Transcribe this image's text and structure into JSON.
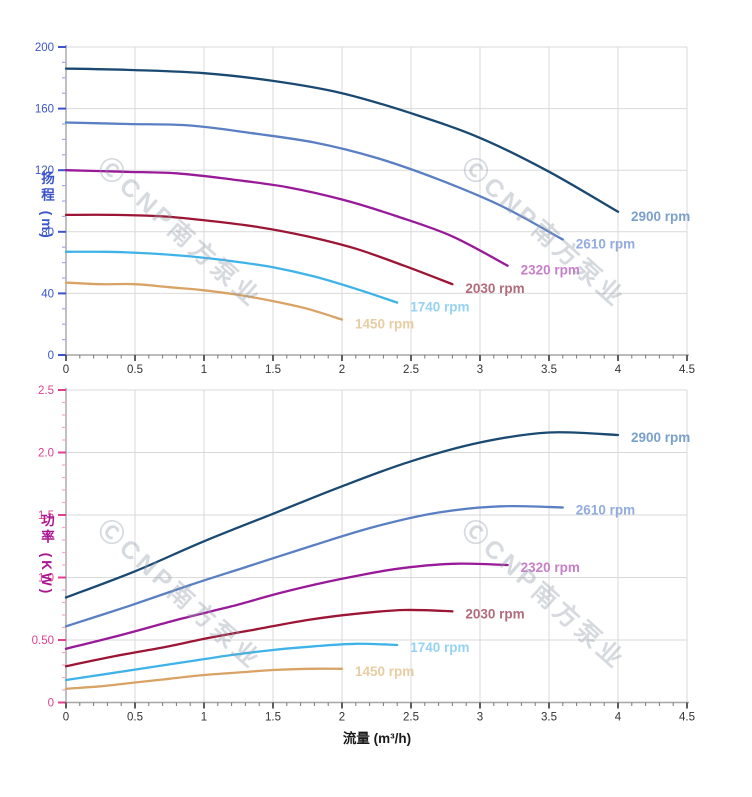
{
  "watermark": {
    "text": "ⒸCNP南方泵业"
  },
  "axis_titles": {
    "head": "扬程 (m)",
    "power": "功率 (KW)",
    "flow": "流量 (m³/h)"
  },
  "colors": {
    "grid": "#d9d9d9",
    "axis_line": "#a6a6a6",
    "x_tick": "#4d4d4d",
    "x_tick_label": "#333333",
    "head_axis": "#3a55cc",
    "head_axis_minor": "#9dade8",
    "power_axis": "#e0408f",
    "power_axis_minor": "#f2a6cb",
    "power_title": "#aa1690"
  },
  "chart_data": [
    {
      "type": "line",
      "title": "",
      "xlabel": "流量 (m³/h)",
      "ylabel": "扬程 (m)",
      "xlim": [
        0,
        4.5
      ],
      "ylim": [
        0,
        200
      ],
      "grid": true,
      "legend_position": "end-of-line",
      "x_ticks": [
        {
          "v": 0,
          "label": "0"
        },
        {
          "v": 0.5,
          "label": "0.5"
        },
        {
          "v": 1,
          "label": "1"
        },
        {
          "v": 1.5,
          "label": "1.5"
        },
        {
          "v": 2,
          "label": "2"
        },
        {
          "v": 2.5,
          "label": "2.5"
        },
        {
          "v": 3,
          "label": "3"
        },
        {
          "v": 3.5,
          "label": "3.5"
        },
        {
          "v": 4,
          "label": "4"
        },
        {
          "v": 4.5,
          "label": "4.5"
        }
      ],
      "y_ticks": [
        {
          "v": 0,
          "label": "0"
        },
        {
          "v": 40,
          "label": "40"
        },
        {
          "v": 80,
          "label": "80"
        },
        {
          "v": 120,
          "label": "120"
        },
        {
          "v": 160,
          "label": "160"
        },
        {
          "v": 200,
          "label": "200"
        }
      ],
      "x_minor_step": 0.1,
      "y_minor_step": 10,
      "series": [
        {
          "name": "2900 rpm",
          "color": "#1a4971",
          "label_color": "#7ba0cc",
          "x": [
            0,
            0.5,
            1,
            1.5,
            2,
            2.5,
            3,
            3.5,
            4
          ],
          "y": [
            186,
            185,
            183,
            178,
            170,
            157,
            141,
            119,
            93
          ]
        },
        {
          "name": "2610 rpm",
          "color": "#5a7fc2",
          "label_color": "#93abdf",
          "x": [
            0,
            0.45,
            0.9,
            1.35,
            1.8,
            2.25,
            2.7,
            3.15,
            3.6
          ],
          "y": [
            151,
            150,
            149,
            144,
            138,
            128,
            114,
            97,
            75
          ]
        },
        {
          "name": "2320 rpm",
          "color": "#991a99",
          "label_color": "#c77fc9",
          "x": [
            0,
            0.4,
            0.8,
            1.2,
            1.6,
            2.0,
            2.4,
            2.8,
            3.2
          ],
          "y": [
            120,
            119,
            118,
            114,
            109,
            101,
            90,
            77,
            58
          ]
        },
        {
          "name": "2030 rpm",
          "color": "#9c1535",
          "label_color": "#b06c7c",
          "x": [
            0,
            0.35,
            0.7,
            1.05,
            1.4,
            1.75,
            2.1,
            2.45,
            2.8
          ],
          "y": [
            91,
            91,
            90,
            87,
            83,
            77,
            69,
            58,
            46
          ]
        },
        {
          "name": "1740 rpm",
          "color": "#3fb3e8",
          "label_color": "#96d2f2",
          "x": [
            0,
            0.3,
            0.6,
            0.9,
            1.2,
            1.5,
            1.8,
            2.1,
            2.4
          ],
          "y": [
            67,
            67,
            66,
            64,
            61,
            57,
            51,
            43,
            34
          ]
        },
        {
          "name": "1450 rpm",
          "color": "#d8a365",
          "label_color": "#e8cda2",
          "x": [
            0,
            0.25,
            0.5,
            0.75,
            1,
            1.25,
            1.5,
            1.75,
            2
          ],
          "y": [
            47,
            46,
            46,
            44,
            42,
            39,
            35,
            30,
            23
          ]
        }
      ]
    },
    {
      "type": "line",
      "title": "",
      "xlabel": "流量 (m³/h)",
      "ylabel": "功率 (KW)",
      "xlim": [
        0,
        4.5
      ],
      "ylim": [
        0,
        2.5
      ],
      "grid": true,
      "legend_position": "end-of-line",
      "x_ticks": [
        {
          "v": 0,
          "label": "0"
        },
        {
          "v": 0.5,
          "label": "0.5"
        },
        {
          "v": 1,
          "label": "1"
        },
        {
          "v": 1.5,
          "label": "1.5"
        },
        {
          "v": 2,
          "label": "2"
        },
        {
          "v": 2.5,
          "label": "2.5"
        },
        {
          "v": 3,
          "label": "3"
        },
        {
          "v": 3.5,
          "label": "3.5"
        },
        {
          "v": 4,
          "label": "4"
        },
        {
          "v": 4.5,
          "label": "4.5"
        }
      ],
      "y_ticks": [
        {
          "v": 0,
          "label": "0"
        },
        {
          "v": 0.5,
          "label": "0.50"
        },
        {
          "v": 1,
          "label": "1.0"
        },
        {
          "v": 1.5,
          "label": "1.5"
        },
        {
          "v": 2,
          "label": "2.0"
        },
        {
          "v": 2.5,
          "label": "2.5"
        }
      ],
      "x_minor_step": 0.1,
      "y_minor_step": 0.1,
      "series": [
        {
          "name": "2900 rpm",
          "color": "#1a4971",
          "label_color": "#7ba0cc",
          "x": [
            0,
            0.5,
            1,
            1.5,
            2,
            2.5,
            3,
            3.5,
            4
          ],
          "y": [
            0.84,
            1.05,
            1.29,
            1.51,
            1.73,
            1.93,
            2.08,
            2.16,
            2.14
          ]
        },
        {
          "name": "2610 rpm",
          "color": "#5a7fc2",
          "label_color": "#93abdf",
          "x": [
            0,
            0.45,
            0.9,
            1.35,
            1.8,
            2.25,
            2.7,
            3.15,
            3.6
          ],
          "y": [
            0.61,
            0.77,
            0.94,
            1.1,
            1.26,
            1.41,
            1.52,
            1.57,
            1.56
          ]
        },
        {
          "name": "2320 rpm",
          "color": "#991a99",
          "label_color": "#c77fc9",
          "x": [
            0,
            0.4,
            0.8,
            1.2,
            1.6,
            2.0,
            2.4,
            2.8,
            3.2
          ],
          "y": [
            0.43,
            0.54,
            0.66,
            0.77,
            0.89,
            0.99,
            1.07,
            1.11,
            1.1
          ]
        },
        {
          "name": "2030 rpm",
          "color": "#9c1535",
          "label_color": "#b06c7c",
          "x": [
            0,
            0.35,
            0.7,
            1.05,
            1.4,
            1.75,
            2.1,
            2.45,
            2.8
          ],
          "y": [
            0.29,
            0.37,
            0.44,
            0.52,
            0.59,
            0.66,
            0.71,
            0.74,
            0.73
          ]
        },
        {
          "name": "1740 rpm",
          "color": "#3fb3e8",
          "label_color": "#96d2f2",
          "x": [
            0,
            0.3,
            0.6,
            0.9,
            1.2,
            1.5,
            1.8,
            2.1,
            2.4
          ],
          "y": [
            0.18,
            0.23,
            0.28,
            0.33,
            0.38,
            0.42,
            0.45,
            0.47,
            0.46
          ]
        },
        {
          "name": "1450 rpm",
          "color": "#d8a365",
          "label_color": "#e8cda2",
          "x": [
            0,
            0.25,
            0.5,
            0.75,
            1,
            1.25,
            1.5,
            1.75,
            2
          ],
          "y": [
            0.11,
            0.13,
            0.16,
            0.19,
            0.22,
            0.24,
            0.26,
            0.27,
            0.27
          ]
        }
      ]
    }
  ]
}
